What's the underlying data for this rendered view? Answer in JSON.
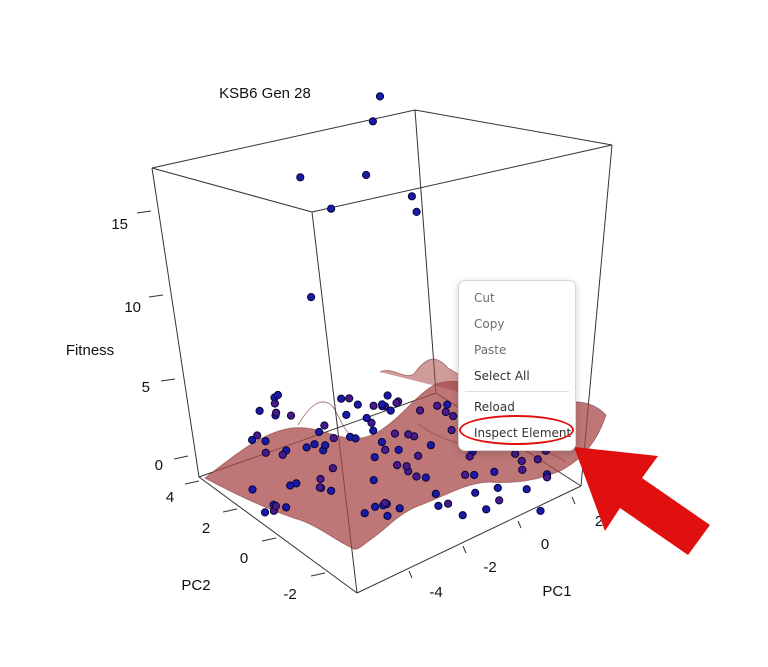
{
  "chart_data": {
    "type": "scatter",
    "title": "KSB6 Gen 28",
    "zlabel": "Fitness",
    "xlabel": "PC1",
    "ylabel": "PC2",
    "zticks": [
      "0",
      "5",
      "10",
      "15"
    ],
    "xticks": [
      "-4",
      "-2",
      "0",
      "2"
    ],
    "yticks": [
      "-2",
      "0",
      "2",
      "4"
    ],
    "point_color": "#1a1aa8",
    "low_point_color": "#4a1a8a",
    "surface_color": "#a84848",
    "series": [
      {
        "values": [
          {
            "pc1": 2.4,
            "pc2": 4.0,
            "fitness": 17.5
          },
          {
            "pc1": 1.8,
            "pc2": 3.6,
            "fitness": 16.8
          },
          {
            "pc1": -1.2,
            "pc2": 3.2,
            "fitness": 16.0
          },
          {
            "pc1": 0.6,
            "pc2": 2.4,
            "fitness": 15.5
          },
          {
            "pc1": -1.0,
            "pc2": 2.0,
            "fitness": 15.0
          },
          {
            "pc1": 1.6,
            "pc2": 1.6,
            "fitness": 14.2
          },
          {
            "pc1": 1.8,
            "pc2": 1.8,
            "fitness": 13.0
          },
          {
            "pc1": -3.0,
            "pc2": 0.5,
            "fitness": 12.5
          }
        ]
      }
    ]
  },
  "context_menu": {
    "items": [
      {
        "label": "Cut"
      },
      {
        "label": "Copy"
      },
      {
        "label": "Paste"
      },
      {
        "label": "Select All"
      },
      {
        "label": "Reload"
      },
      {
        "label": "Inspect Element"
      }
    ]
  },
  "annotation_color": "#e01010"
}
